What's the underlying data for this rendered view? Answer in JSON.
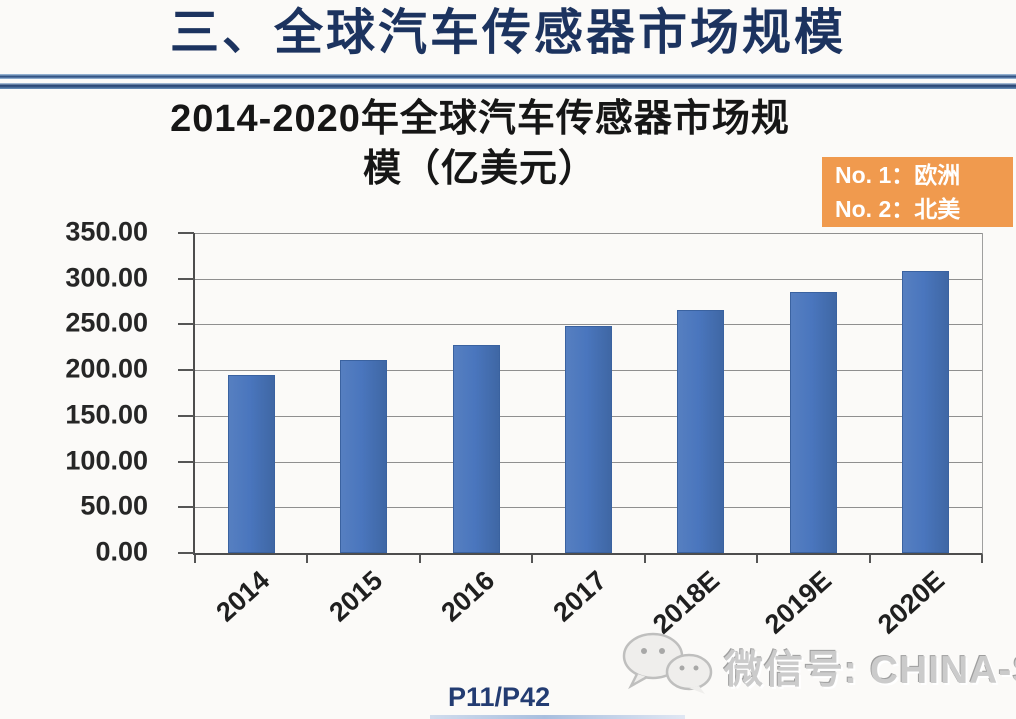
{
  "slide": {
    "title": "三、全球汽车传感器市场规模",
    "page_label": "P11/P42",
    "watermark_text": "微信号: CHINA-SENSOR",
    "badge": {
      "line1": "No. 1：欧洲",
      "line2": "No. 2：北美"
    },
    "colors": {
      "header_navy": "#1c335f",
      "badge_orange": "#F09A4E",
      "bar_blue": "#4A76BE",
      "watermark_gray": "#cbcbcb"
    }
  },
  "chart_data": {
    "type": "bar",
    "title": "2014-2020年全球汽车传感器市场规模（亿美元）",
    "title_line1": "2014-2020年全球汽车传感器市场规",
    "title_line2": "模（亿美元）",
    "xlabel": "",
    "ylabel": "亿美元",
    "categories": [
      "2014",
      "2015",
      "2016",
      "2017",
      "2018E",
      "2019E",
      "2020E"
    ],
    "values": [
      195,
      211,
      228,
      248,
      266,
      286,
      309
    ],
    "ylim": [
      0,
      350
    ],
    "ytick_step": 50,
    "ytick_labels": [
      "0.00",
      "50.00",
      "100.00",
      "150.00",
      "200.00",
      "250.00",
      "300.00",
      "350.00"
    ],
    "grid": true,
    "legend": "none",
    "bar_color": "#4A76BE"
  }
}
